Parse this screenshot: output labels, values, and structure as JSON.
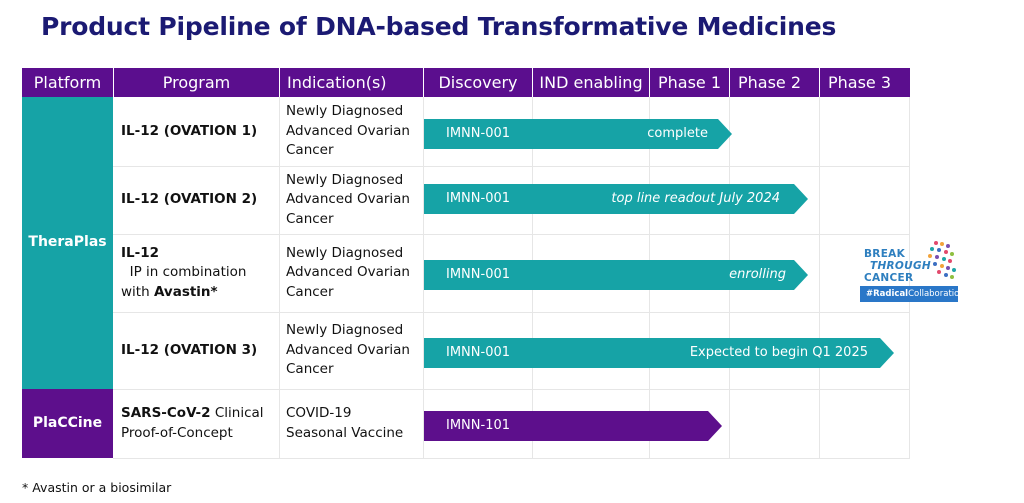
{
  "title": "Product Pipeline of DNA-based Transformative Medicines",
  "headers": {
    "platform": "Platform",
    "program": "Program",
    "indication": "Indication(s)",
    "discovery": "Discovery",
    "ind_enabling": "IND enabling",
    "phase1": "Phase 1",
    "phase2": "Phase 2",
    "phase3": "Phase 3"
  },
  "platforms": {
    "theraplas": "TheraPlas",
    "placcine": "PlaCCine"
  },
  "rows": [
    {
      "program_bold": "IL-12 (OVATION 1)",
      "indication_lines": [
        "Newly Diagnosed",
        "Advanced Ovarian",
        "Cancer"
      ],
      "drug": "IMNN-001",
      "status": "complete",
      "status_italic": false,
      "progress_stage": "Phase 1 (complete)"
    },
    {
      "program_bold": "IL-12 (OVATION 2)",
      "indication_lines": [
        "Newly Diagnosed",
        "Advanced Ovarian",
        "Cancer"
      ],
      "drug": "IMNN-001",
      "status": "top line readout July 2024",
      "status_italic": true,
      "progress_stage": "Phase 2"
    },
    {
      "program_bold": "IL-12",
      "program_mid": "  IP in combination",
      "program_line2_plain": "with ",
      "program_line2_bold": "Avastin*",
      "indication_lines": [
        "Newly Diagnosed",
        "Advanced Ovarian",
        "Cancer"
      ],
      "drug": "IMNN-001",
      "status": "enrolling",
      "status_italic": true,
      "progress_stage": "Phase 2"
    },
    {
      "program_bold": "IL-12 (OVATION 3)",
      "indication_lines": [
        "Newly Diagnosed",
        "Advanced Ovarian",
        "Cancer"
      ],
      "drug": "IMNN-001",
      "status": "Expected to begin Q1 2025",
      "status_italic": false,
      "progress_stage": "Phase 3"
    },
    {
      "program_bold": "SARS-CoV-2",
      "program_rest": " Clinical",
      "program_line2_plain": "Proof-of-Concept",
      "indication_lines": [
        "COVID-19",
        "Seasonal Vaccine"
      ],
      "drug": "IMNN-101",
      "status": "",
      "status_italic": false,
      "progress_stage": "Phase 1"
    }
  ],
  "logo": {
    "line1": "BREAK",
    "line2": "THROUGH",
    "line3": "CANCER",
    "tag_bold": "#Radical",
    "tag_rest": "Collaboration"
  },
  "footnote": "* Avastin or a biosimilar",
  "colors": {
    "title": "#1b1a73",
    "header_bg": "#5b0e8e",
    "theraplas": "#16a3a6",
    "placcine": "#5d0f8c"
  }
}
